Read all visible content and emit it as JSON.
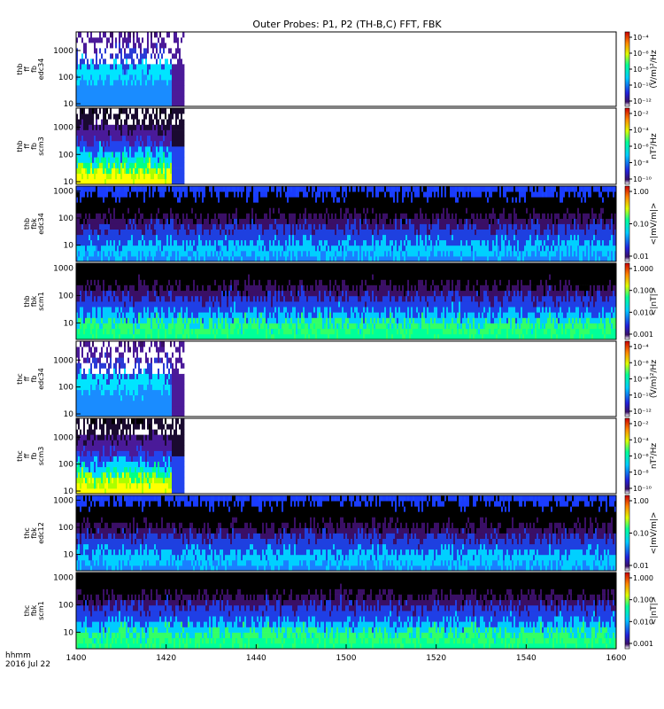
{
  "chart_data": {
    "type": "heatmap",
    "title": "Outer Probes: P1, P2 (TH-B,C) FFT, FBK",
    "x_axis": {
      "min": 1400,
      "max": 1600,
      "ticks": [
        "1400",
        "1420",
        "1440",
        "1500",
        "1520",
        "1540",
        "1600"
      ],
      "corner_label_1": "hhmm",
      "corner_label_2": "2016 Jul 22"
    },
    "panels": [
      {
        "label_lines": [
          "thb",
          "ff",
          "fb",
          "edc34"
        ],
        "yscale": "log",
        "ylim": [
          8,
          5000
        ],
        "yticks": [
          "10",
          "100",
          "1000"
        ],
        "colorbar_label": "(V/m)²/Hz",
        "colorbar_ticks": [
          "10⁻¹²",
          "10⁻¹⁰",
          "10⁻⁸",
          "10⁻⁶",
          "10⁻⁴"
        ],
        "data_end": 1440,
        "kind": "fft_e"
      },
      {
        "label_lines": [
          "thb",
          "ff",
          "fb",
          "scm3"
        ],
        "yscale": "log",
        "ylim": [
          8,
          5000
        ],
        "yticks": [
          "10",
          "100",
          "1000"
        ],
        "colorbar_label": "nT²/Hz",
        "colorbar_ticks": [
          "10⁻¹⁰",
          "10⁻⁸",
          "10⁻⁶",
          "10⁻⁴",
          "10⁻²"
        ],
        "data_end": 1440,
        "kind": "fft_b"
      },
      {
        "label_lines": [
          "thb",
          "fbk",
          "edc34"
        ],
        "yscale": "log",
        "ylim": [
          2.5,
          1500
        ],
        "yticks": [
          "10",
          "100",
          "1000"
        ],
        "colorbar_label": "<|mV/m|>",
        "colorbar_ticks": [
          "0.01",
          "0.10",
          "1.00"
        ],
        "data_end": 1600,
        "kind": "fbk_e"
      },
      {
        "label_lines": [
          "thb",
          "fbk",
          "scm1"
        ],
        "yscale": "log",
        "ylim": [
          2.5,
          1500
        ],
        "yticks": [
          "10",
          "100",
          "1000"
        ],
        "colorbar_label": "<|nT|>",
        "colorbar_ticks": [
          "0.001",
          "0.010",
          "0.100",
          "1.000"
        ],
        "data_end": 1600,
        "kind": "fbk_b"
      },
      {
        "label_lines": [
          "thc",
          "ff",
          "fb",
          "edc34"
        ],
        "yscale": "log",
        "ylim": [
          8,
          5000
        ],
        "yticks": [
          "10",
          "100",
          "1000"
        ],
        "colorbar_label": "(V/m)²/Hz",
        "colorbar_ticks": [
          "10⁻¹²",
          "10⁻¹⁰",
          "10⁻⁸",
          "10⁻⁶",
          "10⁻⁴"
        ],
        "data_end": 1440,
        "kind": "fft_e"
      },
      {
        "label_lines": [
          "thc",
          "ff",
          "fb",
          "scm3"
        ],
        "yscale": "log",
        "ylim": [
          8,
          5000
        ],
        "yticks": [
          "10",
          "100",
          "1000"
        ],
        "colorbar_label": "nT²/Hz",
        "colorbar_ticks": [
          "10⁻¹⁰",
          "10⁻⁸",
          "10⁻⁶",
          "10⁻⁴",
          "10⁻²"
        ],
        "data_end": 1440,
        "kind": "fft_b"
      },
      {
        "label_lines": [
          "thc",
          "fbk",
          "edc12"
        ],
        "yscale": "log",
        "ylim": [
          2.5,
          1500
        ],
        "yticks": [
          "10",
          "100",
          "1000"
        ],
        "colorbar_label": "<|mV/m|>",
        "colorbar_ticks": [
          "0.01",
          "0.10",
          "1.00"
        ],
        "data_end": 1600,
        "kind": "fbk_e"
      },
      {
        "label_lines": [
          "thc",
          "fbk",
          "scm1"
        ],
        "yscale": "log",
        "ylim": [
          2.5,
          1500
        ],
        "yticks": [
          "10",
          "100",
          "1000"
        ],
        "colorbar_label": "<|nT|>",
        "colorbar_ticks": [
          "0.001",
          "0.010",
          "0.100",
          "1.000"
        ],
        "data_end": 1600,
        "kind": "fbk_b"
      }
    ]
  }
}
